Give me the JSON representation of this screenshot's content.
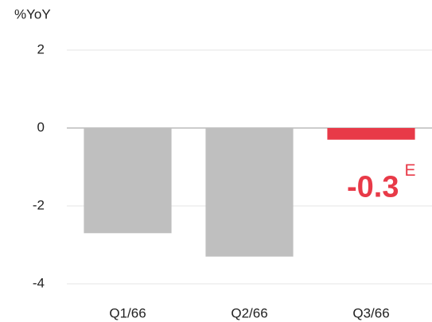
{
  "chart_data": {
    "type": "bar",
    "y_label": "%YoY",
    "categories": [
      "Q1/66",
      "Q2/66",
      "Q3/66"
    ],
    "values": [
      -2.7,
      -3.3,
      -0.3
    ],
    "colors": [
      "#bfbfbf",
      "#bfbfbf",
      "#e83a48"
    ],
    "labeled_index": 2,
    "label_note": "E",
    "ylim": [
      -4,
      2
    ],
    "yticks": [
      2,
      0,
      -2,
      -4
    ],
    "grid": true
  }
}
